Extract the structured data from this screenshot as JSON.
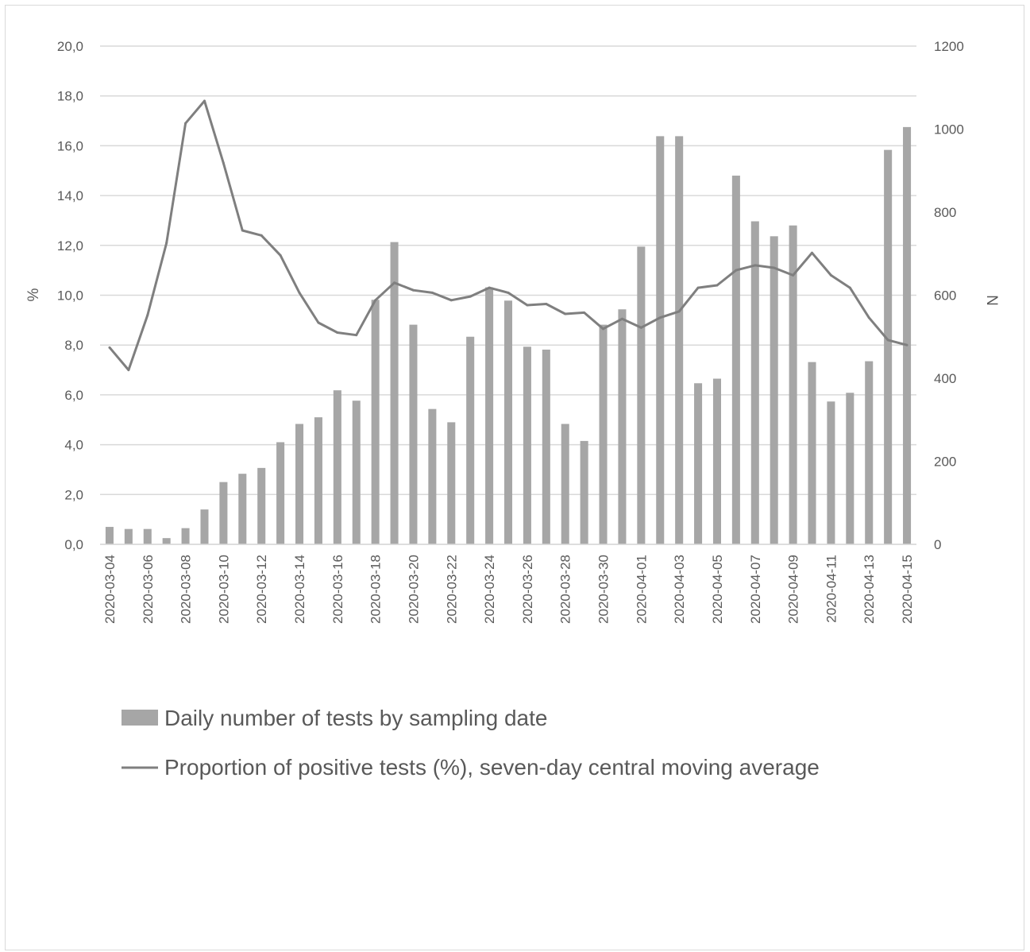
{
  "chart_data": {
    "type": "bar+line",
    "title": "",
    "y_left_label": "%",
    "y_right_label": "N",
    "y_left_lim": [
      0,
      20
    ],
    "y_left_ticks": [
      "0,0",
      "2,0",
      "4,0",
      "6,0",
      "8,0",
      "10,0",
      "12,0",
      "14,0",
      "16,0",
      "18,0",
      "20,0"
    ],
    "y_right_lim": [
      0,
      1200
    ],
    "y_right_ticks": [
      "0",
      "200",
      "400",
      "600",
      "800",
      "1000",
      "1200"
    ],
    "grid": true,
    "legend_position": "bottom",
    "categories": [
      "2020-03-04",
      "2020-03-05",
      "2020-03-06",
      "2020-03-07",
      "2020-03-08",
      "2020-03-09",
      "2020-03-10",
      "2020-03-11",
      "2020-03-12",
      "2020-03-13",
      "2020-03-14",
      "2020-03-15",
      "2020-03-16",
      "2020-03-17",
      "2020-03-18",
      "2020-03-19",
      "2020-03-20",
      "2020-03-21",
      "2020-03-22",
      "2020-03-23",
      "2020-03-24",
      "2020-03-25",
      "2020-03-26",
      "2020-03-27",
      "2020-03-28",
      "2020-03-29",
      "2020-03-30",
      "2020-03-31",
      "2020-04-01",
      "2020-04-02",
      "2020-04-03",
      "2020-04-04",
      "2020-04-05",
      "2020-04-06",
      "2020-04-07",
      "2020-04-08",
      "2020-04-09",
      "2020-04-10",
      "2020-04-11",
      "2020-04-12",
      "2020-04-13",
      "2020-04-14",
      "2020-04-15"
    ],
    "x_tick_labels": [
      "2020-03-04",
      "2020-03-06",
      "2020-03-08",
      "2020-03-10",
      "2020-03-12",
      "2020-03-14",
      "2020-03-16",
      "2020-03-18",
      "2020-03-20",
      "2020-03-22",
      "2020-03-24",
      "2020-03-26",
      "2020-03-28",
      "2020-03-30",
      "2020-04-01",
      "2020-04-03",
      "2020-04-05",
      "2020-04-07",
      "2020-04-09",
      "2020-04-11",
      "2020-04-13",
      "2020-04-15"
    ],
    "series": [
      {
        "name": "Daily number of tests by sampling date",
        "type": "bar",
        "axis": "right",
        "color": "#a6a6a6",
        "values": [
          42,
          37,
          37,
          15,
          39,
          84,
          150,
          170,
          184,
          246,
          290,
          306,
          371,
          346,
          589,
          728,
          529,
          326,
          294,
          500,
          619,
          587,
          476,
          469,
          290,
          249,
          529,
          566,
          717,
          983,
          983,
          388,
          399,
          888,
          778,
          742,
          768,
          439,
          344,
          365,
          441,
          950,
          1005
        ]
      },
      {
        "name": "Proportion of positive tests (%), seven-day central moving average",
        "type": "line",
        "axis": "left",
        "color": "#7f7f7f",
        "values": [
          7.9,
          7.0,
          9.2,
          12.1,
          16.9,
          17.8,
          15.3,
          12.6,
          12.4,
          11.6,
          10.1,
          8.9,
          8.5,
          8.4,
          9.8,
          10.5,
          10.2,
          10.1,
          9.8,
          9.95,
          10.3,
          10.1,
          9.6,
          9.65,
          9.25,
          9.3,
          8.65,
          9.05,
          8.7,
          9.1,
          9.35,
          10.3,
          10.4,
          11.0,
          11.2,
          11.1,
          10.8,
          11.7,
          10.8,
          10.3,
          9.1,
          8.2,
          8.0
        ]
      }
    ]
  }
}
